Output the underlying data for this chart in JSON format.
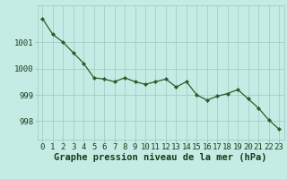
{
  "x": [
    0,
    1,
    2,
    3,
    4,
    5,
    6,
    7,
    8,
    9,
    10,
    11,
    12,
    13,
    14,
    15,
    16,
    17,
    18,
    19,
    20,
    21,
    22,
    23
  ],
  "y": [
    1001.9,
    1001.3,
    1001.0,
    1000.6,
    1000.2,
    999.65,
    999.6,
    999.5,
    999.65,
    999.5,
    999.4,
    999.5,
    999.6,
    999.3,
    999.5,
    999.0,
    998.8,
    998.95,
    999.05,
    999.2,
    998.85,
    998.5,
    998.05,
    997.7
  ],
  "line_color": "#2d5a27",
  "marker_color": "#2d5a27",
  "bg_color": "#c5ece4",
  "grid_color": "#a0c8c0",
  "xlabel": "Graphe pression niveau de la mer (hPa)",
  "xlabel_color": "#1a3a1a",
  "tick_color": "#1a3a1a",
  "ylim": [
    997.3,
    1002.4
  ],
  "xlim": [
    -0.5,
    23.5
  ],
  "yticks": [
    998,
    999,
    1000,
    1001
  ],
  "xtick_labels": [
    "0",
    "1",
    "2",
    "3",
    "4",
    "5",
    "6",
    "7",
    "8",
    "9",
    "10",
    "11",
    "12",
    "13",
    "14",
    "15",
    "16",
    "17",
    "18",
    "19",
    "20",
    "21",
    "22",
    "23"
  ],
  "axis_fontsize": 6.5,
  "xlabel_fontsize": 7.5
}
